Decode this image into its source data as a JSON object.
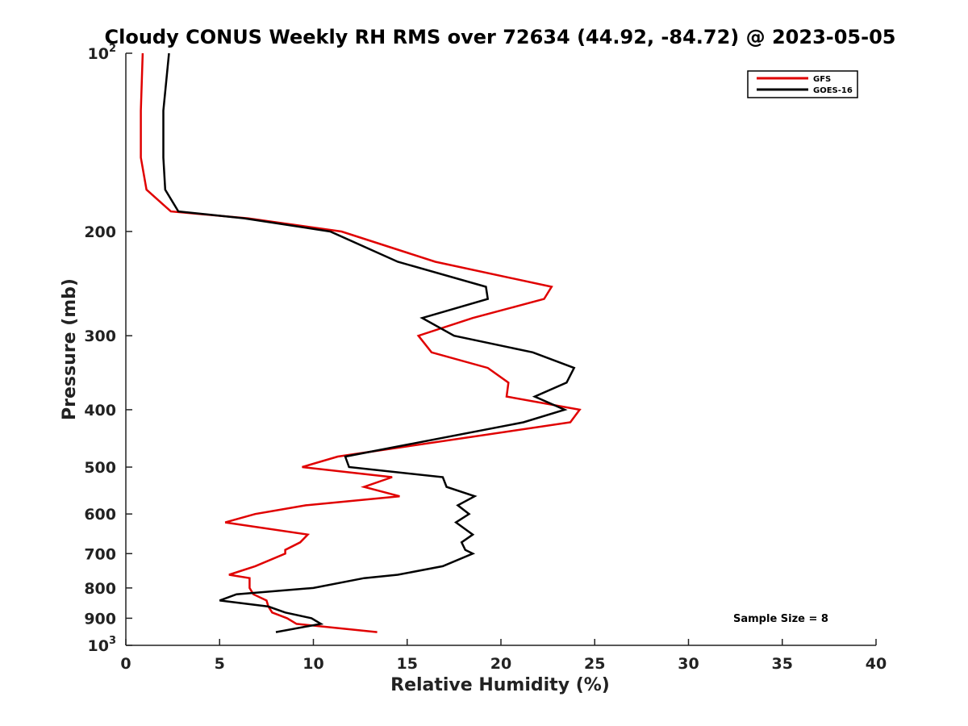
{
  "chart_data": {
    "type": "line",
    "title": "Cloudy CONUS Weekly RH RMS over 72634 (44.92, -84.72) @ 2023-05-05",
    "xlabel": "Relative Humidity (%)",
    "ylabel": "Pressure (mb)",
    "xlim": [
      0,
      40
    ],
    "ylim": [
      100,
      1000
    ],
    "y_scale": "log",
    "y_reversed": true,
    "x_ticks": [
      0,
      5,
      10,
      15,
      20,
      25,
      30,
      35,
      40
    ],
    "y_ticks": [
      {
        "value": 100,
        "base": "10",
        "exp": "2"
      },
      {
        "value": 200,
        "label": "200"
      },
      {
        "value": 300,
        "label": "300"
      },
      {
        "value": 400,
        "label": "400"
      },
      {
        "value": 500,
        "label": "500"
      },
      {
        "value": 600,
        "label": "600"
      },
      {
        "value": 700,
        "label": "700"
      },
      {
        "value": 800,
        "label": "800"
      },
      {
        "value": 900,
        "label": "900"
      },
      {
        "value": 1000,
        "base": "10",
        "exp": "3"
      }
    ],
    "grid": false,
    "legend_position": "top-right",
    "series": [
      {
        "name": "GFS",
        "color": "#e00000",
        "points": [
          [
            0.9,
            100
          ],
          [
            0.8,
            125
          ],
          [
            0.8,
            150
          ],
          [
            1.1,
            170
          ],
          [
            2.4,
            185
          ],
          [
            6.5,
            190
          ],
          [
            11.5,
            200
          ],
          [
            16.5,
            225
          ],
          [
            22.7,
            248
          ],
          [
            22.3,
            260
          ],
          [
            18.5,
            280
          ],
          [
            15.6,
            300
          ],
          [
            16.3,
            320
          ],
          [
            19.3,
            340
          ],
          [
            20.4,
            360
          ],
          [
            20.3,
            380
          ],
          [
            24.2,
            400
          ],
          [
            23.7,
            420
          ],
          [
            11.3,
            480
          ],
          [
            9.4,
            500
          ],
          [
            14.2,
            520
          ],
          [
            12.7,
            540
          ],
          [
            14.6,
            560
          ],
          [
            9.6,
            580
          ],
          [
            6.9,
            600
          ],
          [
            5.3,
            620
          ],
          [
            9.7,
            650
          ],
          [
            9.3,
            670
          ],
          [
            8.5,
            690
          ],
          [
            8.5,
            700
          ],
          [
            6.9,
            735
          ],
          [
            5.5,
            760
          ],
          [
            6.6,
            770
          ],
          [
            6.6,
            800
          ],
          [
            6.8,
            820
          ],
          [
            7.5,
            840
          ],
          [
            7.6,
            860
          ],
          [
            7.8,
            880
          ],
          [
            8.6,
            900
          ],
          [
            9.1,
            920
          ],
          [
            13.4,
            950
          ]
        ]
      },
      {
        "name": "GOES-16",
        "color": "#000000",
        "points": [
          [
            2.3,
            100
          ],
          [
            2.0,
            125
          ],
          [
            2.0,
            150
          ],
          [
            2.1,
            170
          ],
          [
            2.8,
            185
          ],
          [
            6.3,
            190
          ],
          [
            10.9,
            200
          ],
          [
            14.5,
            225
          ],
          [
            19.2,
            248
          ],
          [
            19.3,
            260
          ],
          [
            15.8,
            280
          ],
          [
            17.5,
            300
          ],
          [
            21.7,
            320
          ],
          [
            23.9,
            340
          ],
          [
            23.5,
            360
          ],
          [
            21.8,
            380
          ],
          [
            23.4,
            400
          ],
          [
            21.2,
            420
          ],
          [
            11.7,
            480
          ],
          [
            11.9,
            500
          ],
          [
            16.9,
            520
          ],
          [
            17.1,
            540
          ],
          [
            18.6,
            560
          ],
          [
            17.7,
            580
          ],
          [
            18.3,
            600
          ],
          [
            17.6,
            620
          ],
          [
            18.5,
            650
          ],
          [
            17.9,
            670
          ],
          [
            18.1,
            690
          ],
          [
            18.5,
            700
          ],
          [
            16.9,
            735
          ],
          [
            14.5,
            760
          ],
          [
            12.7,
            770
          ],
          [
            10.0,
            800
          ],
          [
            5.9,
            820
          ],
          [
            5.0,
            840
          ],
          [
            7.6,
            860
          ],
          [
            8.5,
            880
          ],
          [
            9.9,
            900
          ],
          [
            10.4,
            920
          ],
          [
            8.0,
            950
          ]
        ]
      }
    ],
    "annotations": [
      "Sample Size = 8"
    ]
  }
}
